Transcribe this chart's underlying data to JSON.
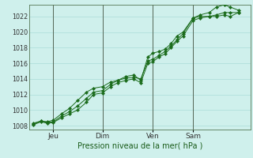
{
  "xlabel": "Pression niveau de la mer( hPa )",
  "bg_color": "#cff0ec",
  "grid_color": "#aaddd8",
  "line_color": "#1a6b1a",
  "marker_color": "#1a6b1a",
  "ylim": [
    1007.5,
    1023.5
  ],
  "yticks": [
    1008,
    1010,
    1012,
    1014,
    1016,
    1018,
    1020,
    1022
  ],
  "xtick_labels": [
    "Jeu",
    "Dim",
    "Ven",
    "Sam"
  ],
  "xtick_positions": [
    0.1,
    0.345,
    0.595,
    0.795
  ],
  "vline_positions": [
    0.1,
    0.345,
    0.595,
    0.795
  ],
  "vline_color": "#556655",
  "line1_x": [
    0.0,
    0.04,
    0.07,
    0.1,
    0.14,
    0.18,
    0.22,
    0.265,
    0.3,
    0.345,
    0.385,
    0.42,
    0.46,
    0.5,
    0.535,
    0.57,
    0.595,
    0.625,
    0.655,
    0.685,
    0.715,
    0.745,
    0.795,
    0.83,
    0.875,
    0.91,
    0.95,
    0.98,
    1.02
  ],
  "line1_y": [
    1008.2,
    1008.6,
    1008.4,
    1008.5,
    1009.2,
    1009.8,
    1010.5,
    1011.5,
    1012.3,
    1012.5,
    1013.3,
    1013.8,
    1014.1,
    1014.2,
    1014.0,
    1016.3,
    1016.5,
    1017.0,
    1017.5,
    1018.2,
    1019.0,
    1019.8,
    1021.8,
    1022.2,
    1022.5,
    1023.2,
    1023.5,
    1023.2,
    1022.8
  ],
  "line2_x": [
    0.0,
    0.04,
    0.07,
    0.1,
    0.14,
    0.18,
    0.22,
    0.265,
    0.3,
    0.345,
    0.385,
    0.42,
    0.46,
    0.5,
    0.535,
    0.57,
    0.595,
    0.625,
    0.655,
    0.685,
    0.715,
    0.745,
    0.795,
    0.83,
    0.875,
    0.91,
    0.95,
    0.98,
    1.02
  ],
  "line2_y": [
    1008.3,
    1008.6,
    1008.5,
    1008.7,
    1009.5,
    1010.2,
    1011.2,
    1012.3,
    1012.8,
    1013.0,
    1013.6,
    1013.8,
    1014.3,
    1014.5,
    1013.8,
    1016.8,
    1017.3,
    1017.5,
    1017.8,
    1018.5,
    1019.5,
    1020.0,
    1021.8,
    1022.0,
    1022.0,
    1022.0,
    1022.2,
    1022.0,
    1022.5
  ],
  "line3_x": [
    0.0,
    0.04,
    0.07,
    0.1,
    0.14,
    0.18,
    0.22,
    0.265,
    0.3,
    0.345,
    0.385,
    0.42,
    0.46,
    0.5,
    0.535,
    0.57,
    0.595,
    0.625,
    0.655,
    0.685,
    0.715,
    0.745,
    0.795,
    0.83,
    0.875,
    0.91,
    0.95,
    0.98,
    1.02
  ],
  "line3_y": [
    1008.1,
    1008.5,
    1008.3,
    1008.4,
    1009.0,
    1009.5,
    1010.0,
    1011.0,
    1012.0,
    1012.2,
    1013.0,
    1013.5,
    1013.8,
    1014.0,
    1013.5,
    1016.0,
    1016.2,
    1016.8,
    1017.2,
    1018.0,
    1018.8,
    1019.5,
    1021.5,
    1021.8,
    1022.0,
    1022.2,
    1022.5,
    1022.5,
    1022.5
  ]
}
